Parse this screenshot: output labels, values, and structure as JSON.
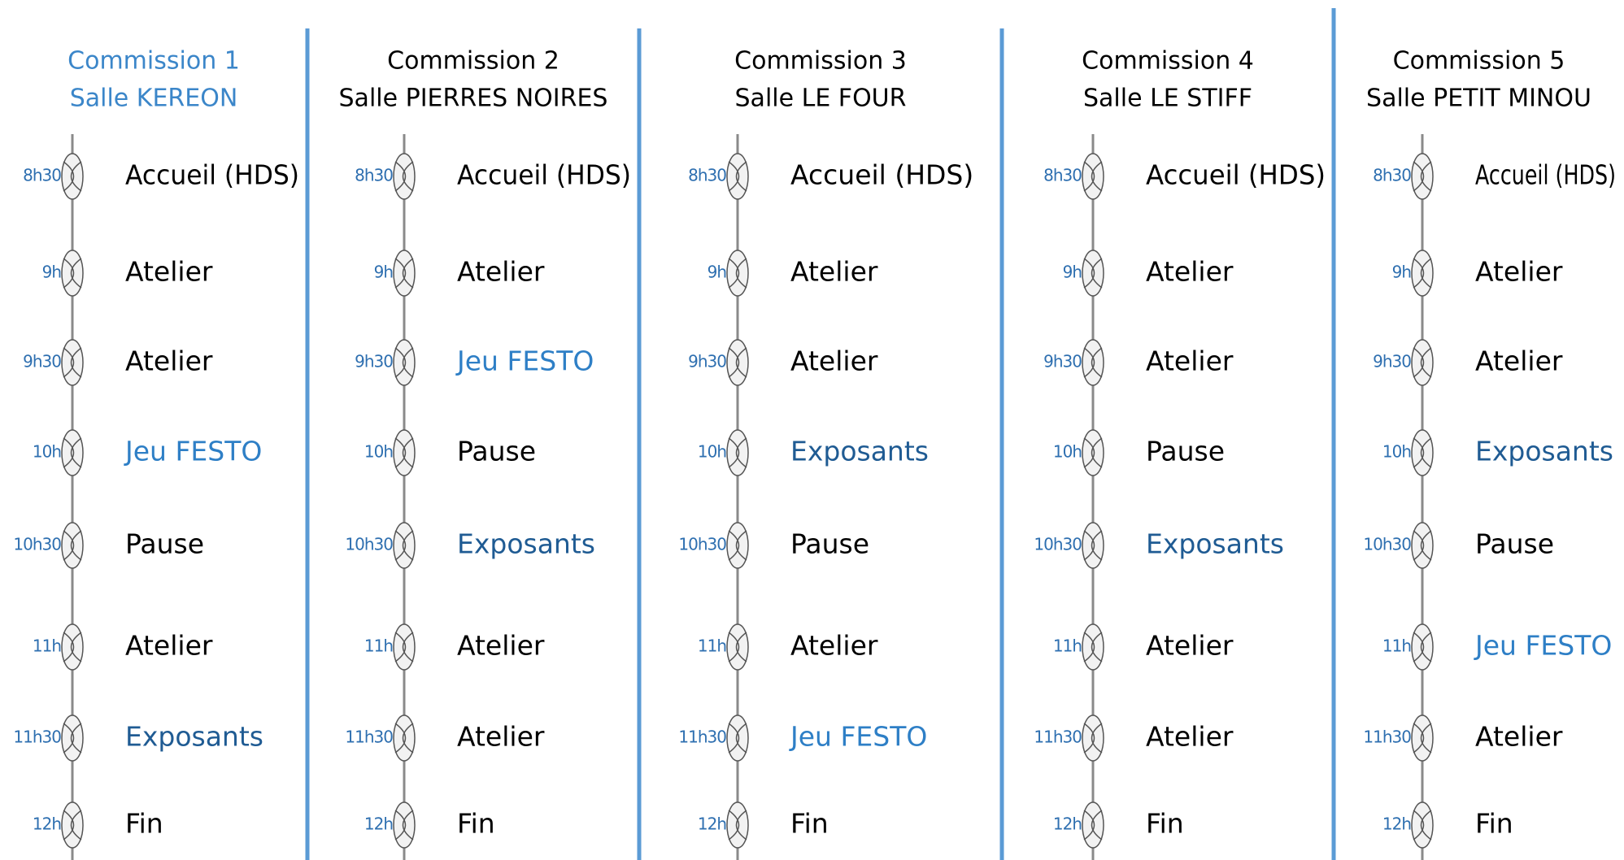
{
  "columns": [
    {
      "title": "Commission 1",
      "room": "Salle KEREON",
      "title_color": "#3b86c9",
      "slots": [
        {
          "time": "8h30",
          "label": "Accueil (HDS)",
          "color": "#000000"
        },
        {
          "time": "9h",
          "label": "Atelier",
          "color": "#000000"
        },
        {
          "time": "9h30",
          "label": "Atelier",
          "color": "#000000"
        },
        {
          "time": "10h",
          "label": "Jeu FESTO",
          "color": "#2e7fc6"
        },
        {
          "time": "10h30",
          "label": "Pause",
          "color": "#000000"
        },
        {
          "time": "11h",
          "label": "Atelier",
          "color": "#000000"
        },
        {
          "time": "11h30",
          "label": "Exposants",
          "color": "#1f5b93"
        },
        {
          "time": "12h",
          "label": "Fin",
          "color": "#000000"
        }
      ]
    },
    {
      "title": "Commission 2",
      "room": "Salle PIERRES NOIRES",
      "title_color": "#000000",
      "slots": [
        {
          "time": "8h30",
          "label": "Accueil (HDS)",
          "color": "#000000"
        },
        {
          "time": "9h",
          "label": "Atelier",
          "color": "#000000"
        },
        {
          "time": "9h30",
          "label": "Jeu FESTO",
          "color": "#2e7fc6"
        },
        {
          "time": "10h",
          "label": "Pause",
          "color": "#000000"
        },
        {
          "time": "10h30",
          "label": "Exposants",
          "color": "#1f5b93"
        },
        {
          "time": "11h",
          "label": "Atelier",
          "color": "#000000"
        },
        {
          "time": "11h30",
          "label": "Atelier",
          "color": "#000000"
        },
        {
          "time": "12h",
          "label": "Fin",
          "color": "#000000"
        }
      ]
    },
    {
      "title": "Commission 3",
      "room": "Salle LE FOUR",
      "title_color": "#000000",
      "slots": [
        {
          "time": "8h30",
          "label": "Accueil (HDS)",
          "color": "#000000"
        },
        {
          "time": "9h",
          "label": "Atelier",
          "color": "#000000"
        },
        {
          "time": "9h30",
          "label": "Atelier",
          "color": "#000000"
        },
        {
          "time": "10h",
          "label": "Exposants",
          "color": "#1f5b93"
        },
        {
          "time": "10h30",
          "label": "Pause",
          "color": "#000000"
        },
        {
          "time": "11h",
          "label": "Atelier",
          "color": "#000000"
        },
        {
          "time": "11h30",
          "label": "Jeu FESTO",
          "color": "#2e7fc6"
        },
        {
          "time": "12h",
          "label": "Fin",
          "color": "#000000"
        }
      ]
    },
    {
      "title": "Commission 4",
      "room": "Salle LE STIFF",
      "title_color": "#000000",
      "slots": [
        {
          "time": "8h30",
          "label": "Accueil (HDS)",
          "color": "#000000"
        },
        {
          "time": "9h",
          "label": "Atelier",
          "color": "#000000"
        },
        {
          "time": "9h30",
          "label": "Atelier",
          "color": "#000000"
        },
        {
          "time": "10h",
          "label": "Pause",
          "color": "#000000"
        },
        {
          "time": "10h30",
          "label": "Exposants",
          "color": "#1f5b93"
        },
        {
          "time": "11h",
          "label": "Atelier",
          "color": "#000000"
        },
        {
          "time": "11h30",
          "label": "Atelier",
          "color": "#000000"
        },
        {
          "time": "12h",
          "label": "Fin",
          "color": "#000000"
        }
      ]
    },
    {
      "title": "Commission 5",
      "room": "Salle PETIT MINOU",
      "title_color": "#000000",
      "slots": [
        {
          "time": "8h30",
          "label": "Accueil (HDS)",
          "color": "#000000"
        },
        {
          "time": "9h",
          "label": "Atelier",
          "color": "#000000"
        },
        {
          "time": "9h30",
          "label": "Atelier",
          "color": "#000000"
        },
        {
          "time": "10h",
          "label": "Exposants",
          "color": "#1f5b93"
        },
        {
          "time": "10h30",
          "label": "Pause",
          "color": "#000000"
        },
        {
          "time": "11h",
          "label": "Jeu FESTO",
          "color": "#2e7fc6"
        },
        {
          "time": "11h30",
          "label": "Atelier",
          "color": "#000000"
        },
        {
          "time": "12h",
          "label": "Fin",
          "color": "#000000"
        }
      ]
    }
  ]
}
